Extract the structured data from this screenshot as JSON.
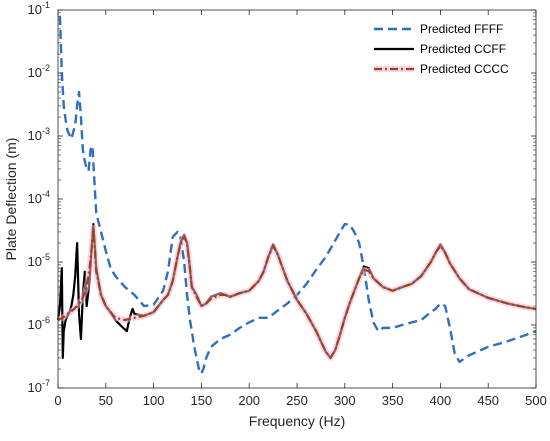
{
  "chart_data": {
    "type": "line",
    "xlabel": "Frequency (Hz)",
    "ylabel": "Plate Deflection (m)",
    "xlim": [
      0,
      500
    ],
    "ylim": [
      1e-07,
      0.1
    ],
    "yscale": "log",
    "grid": false,
    "legend_position": "top-right",
    "x_ticks": [
      "0",
      "50",
      "100",
      "150",
      "200",
      "250",
      "300",
      "350",
      "400",
      "450",
      "500"
    ],
    "y_ticks": [
      {
        "base": "10",
        "exp": "-7"
      },
      {
        "base": "10",
        "exp": "-6"
      },
      {
        "base": "10",
        "exp": "-5"
      },
      {
        "base": "10",
        "exp": "-4"
      },
      {
        "base": "10",
        "exp": "-3"
      },
      {
        "base": "10",
        "exp": "-2"
      },
      {
        "base": "10",
        "exp": "-1"
      }
    ],
    "series": [
      {
        "name": "Predicted FFFF",
        "color": "#2f6fbf",
        "style": "dashed",
        "x": [
          2,
          4,
          6,
          8,
          10,
          14,
          18,
          20,
          22,
          24,
          26,
          28,
          30,
          32,
          34,
          36,
          38,
          40,
          45,
          50,
          55,
          60,
          70,
          80,
          90,
          100,
          110,
          115,
          120,
          125,
          128,
          132,
          135,
          138,
          140,
          142,
          145,
          148,
          150,
          152,
          155,
          160,
          170,
          180,
          190,
          200,
          210,
          220,
          230,
          240,
          250,
          260,
          270,
          280,
          290,
          295,
          300,
          305,
          310,
          315,
          320,
          325,
          330,
          335,
          340,
          350,
          360,
          370,
          380,
          390,
          395,
          400,
          405,
          410,
          415,
          420,
          430,
          450,
          470,
          490,
          500
        ],
        "y": [
          0.08,
          0.01,
          0.003,
          0.0018,
          0.0012,
          0.0009,
          0.0015,
          0.003,
          0.005,
          0.002,
          0.0006,
          0.0004,
          0.0003,
          0.00028,
          0.0006,
          0.0007,
          0.0002,
          6e-05,
          3e-05,
          1.5e-05,
          8e-06,
          6e-06,
          4e-06,
          3e-06,
          2e-06,
          2.1e-06,
          3.5e-06,
          7e-06,
          2.5e-05,
          3e-05,
          2.5e-05,
          1e-05,
          3e-06,
          1.2e-06,
          8e-07,
          5e-07,
          3e-07,
          1.8e-07,
          1.7e-07,
          2e-07,
          3e-07,
          4.5e-07,
          6e-07,
          7e-07,
          9e-07,
          1.1e-06,
          1.3e-06,
          1.3e-06,
          1.7e-06,
          2.2e-06,
          3e-06,
          4.5e-06,
          7.5e-06,
          1.2e-05,
          2.2e-05,
          3e-05,
          4e-05,
          3.9e-05,
          3e-05,
          2e-05,
          8e-06,
          2.5e-06,
          1.1e-06,
          8e-07,
          9e-07,
          9e-07,
          1e-06,
          1.1e-06,
          1.2e-06,
          1.6e-06,
          1.8e-06,
          2.2e-06,
          2e-06,
          9e-07,
          3.5e-07,
          2.6e-07,
          3.3e-07,
          4.5e-07,
          5.5e-07,
          7e-07,
          8e-07
        ]
      },
      {
        "name": "Predicted CCFF",
        "color": "#000000",
        "style": "solid",
        "x": [
          0,
          2,
          4,
          5,
          6,
          8,
          10,
          12,
          14,
          16,
          18,
          20,
          22,
          24,
          26,
          28,
          30,
          33,
          35,
          37,
          40,
          45,
          50,
          55,
          60,
          65,
          70,
          72,
          75,
          78,
          80,
          90,
          100,
          110,
          115,
          120,
          125,
          128,
          132,
          135,
          138,
          140,
          145,
          150,
          155,
          160,
          165,
          170,
          175,
          180,
          190,
          200,
          210,
          215,
          220,
          225,
          230,
          235,
          240,
          250,
          260,
          270,
          275,
          280,
          285,
          290,
          295,
          300,
          305,
          310,
          315,
          320,
          325,
          330,
          340,
          350,
          360,
          370,
          380,
          390,
          395,
          400,
          405,
          410,
          420,
          430,
          450,
          470,
          490,
          500
        ],
        "y": [
          1.2e-06,
          2e-06,
          8e-06,
          3e-07,
          8e-07,
          1.2e-06,
          1.4e-06,
          1.6e-06,
          2e-06,
          3e-06,
          6e-06,
          2e-05,
          1.5e-06,
          6e-07,
          3e-06,
          7e-06,
          2e-06,
          5e-06,
          1.5e-05,
          4e-05,
          8e-06,
          3e-06,
          2e-06,
          1.6e-06,
          1.2e-06,
          1e-06,
          8.5e-07,
          8e-07,
          1.3e-06,
          1.8e-06,
          1.5e-06,
          1.4e-06,
          1.6e-06,
          2.5e-06,
          3e-06,
          5e-06,
          1.2e-05,
          2e-05,
          2.7e-05,
          2e-05,
          8e-06,
          4e-06,
          3e-06,
          2e-06,
          2.2e-06,
          2.8e-06,
          3e-06,
          3.2e-06,
          3e-06,
          2.8e-06,
          3.2e-06,
          3.5e-06,
          5e-06,
          7e-06,
          1.2e-05,
          1.9e-05,
          1.3e-05,
          8e-06,
          5e-06,
          2.5e-06,
          1.5e-06,
          8e-07,
          5.5e-07,
          3.8e-07,
          3e-07,
          4e-07,
          7e-07,
          1.3e-06,
          2.2e-06,
          3.5e-06,
          5.5e-06,
          8.5e-06,
          8e-06,
          5.5e-06,
          4e-06,
          3.5e-06,
          4e-06,
          4.5e-06,
          6e-06,
          1e-05,
          1.4e-05,
          1.9e-05,
          1.4e-05,
          9.5e-06,
          5.5e-06,
          3.7e-06,
          2.7e-06,
          2.2e-06,
          1.9e-06,
          1.8e-06
        ]
      },
      {
        "name": "Predicted CCCC",
        "color": "#9e4319",
        "style": "dashdot",
        "x": [
          0,
          5,
          10,
          15,
          20,
          25,
          30,
          33,
          35,
          37,
          40,
          45,
          50,
          55,
          60,
          70,
          80,
          90,
          100,
          110,
          115,
          120,
          125,
          128,
          132,
          135,
          138,
          140,
          145,
          150,
          155,
          160,
          165,
          170,
          175,
          180,
          190,
          200,
          210,
          215,
          220,
          225,
          230,
          235,
          240,
          250,
          260,
          270,
          275,
          280,
          285,
          290,
          295,
          300,
          305,
          310,
          315,
          320,
          325,
          330,
          340,
          350,
          360,
          370,
          380,
          390,
          395,
          400,
          405,
          410,
          420,
          430,
          450,
          470,
          490,
          500
        ],
        "y": [
          1.2e-06,
          1.3e-06,
          1.5e-06,
          1.7e-06,
          2e-06,
          2.5e-06,
          4e-06,
          8e-06,
          1.5e-05,
          3.5e-05,
          7e-06,
          3e-06,
          2e-06,
          1.6e-06,
          1.3e-06,
          1.2e-06,
          1.3e-06,
          1.4e-06,
          1.6e-06,
          2.5e-06,
          3e-06,
          5e-06,
          1.2e-05,
          1.9e-05,
          2.5e-05,
          2e-05,
          8e-06,
          4e-06,
          2.8e-06,
          2e-06,
          2.2e-06,
          2.6e-06,
          2.8e-06,
          3e-06,
          3e-06,
          2.8e-06,
          3.2e-06,
          3.5e-06,
          5e-06,
          7e-06,
          1.2e-05,
          1.8e-05,
          1.3e-05,
          8e-06,
          5e-06,
          2.5e-06,
          1.5e-06,
          8e-07,
          5.5e-07,
          3.8e-07,
          3e-07,
          4e-07,
          7e-07,
          1.3e-06,
          2.2e-06,
          3.5e-06,
          5.5e-06,
          7.5e-06,
          7.2e-06,
          5.5e-06,
          4e-06,
          3.5e-06,
          4e-06,
          4.5e-06,
          6e-06,
          1e-05,
          1.4e-05,
          1.8e-05,
          1.4e-05,
          9.5e-06,
          5.5e-06,
          3.7e-06,
          2.7e-06,
          2.2e-06,
          1.9e-06,
          1.8e-06
        ]
      }
    ]
  }
}
